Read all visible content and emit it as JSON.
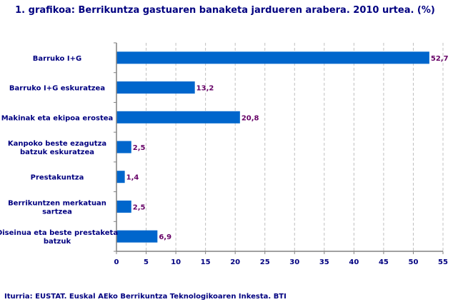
{
  "chart_data": {
    "type": "bar",
    "orientation": "horizontal",
    "title": "1. grafikoa: Berrikuntza gastuaren banaketa jardueren arabera. 2010 urtea. (%)",
    "categories": [
      [
        "Barruko I+G"
      ],
      [
        "Barruko I+G eskuratzea"
      ],
      [
        "Makinak eta ekipoa erostea"
      ],
      [
        "Kanpoko beste ezagutza",
        "batzuk eskuratzea"
      ],
      [
        "Prestakuntza"
      ],
      [
        "Berrikuntzen merkatuan",
        "sartzea"
      ],
      [
        "Diseinua eta beste prestaketa",
        "batzuk"
      ]
    ],
    "values": [
      52.7,
      13.2,
      20.8,
      2.5,
      1.4,
      2.5,
      6.9
    ],
    "data_labels": [
      "52,7",
      "13,2",
      "20,8",
      "2,5",
      "1,4",
      "2,5",
      "6,9"
    ],
    "xlim": [
      0,
      55
    ],
    "xticks": [
      0,
      5,
      10,
      15,
      20,
      25,
      30,
      35,
      40,
      45,
      50,
      55
    ],
    "grid": "vertical dashed",
    "source": "Iturria: EUSTAT. Euskal AEko Berrikuntza Teknologikoaren Inkesta. BTI",
    "colors": {
      "bar": "#0066CC",
      "text": "#000080",
      "data_label": "#660066",
      "grid": "#C0C0C0"
    }
  }
}
